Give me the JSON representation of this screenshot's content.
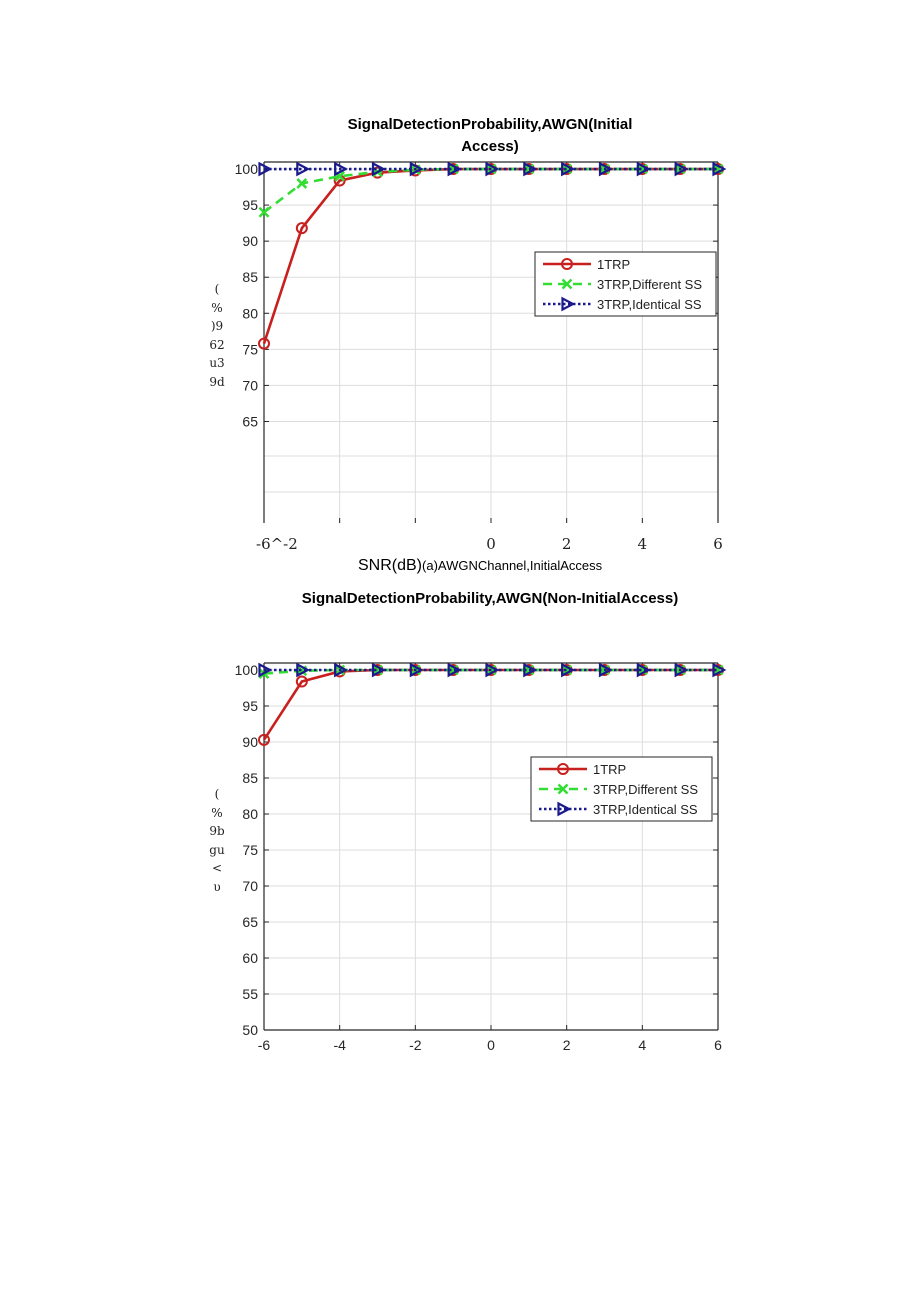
{
  "chart_data": [
    {
      "type": "line",
      "title_line1": "SignalDetectionProbability,AWGN(Initial",
      "title_line2": "Access)",
      "xlabel_main": "SNR(dB)",
      "xlabel_caption": "(a)AWGNChannel,InitialAccess",
      "ylabel_chars": [
        "(",
        "%",
        ")9",
        "62",
        "u3",
        "9d"
      ],
      "x_tick_labels": [
        {
          "x": -6,
          "label": "-6^-2"
        },
        {
          "x": 0,
          "label": "0"
        },
        {
          "x": 2,
          "label": "2"
        },
        {
          "x": 4,
          "label": "4"
        },
        {
          "x": 6,
          "label": "6"
        }
      ],
      "y_ticks": [
        100,
        95,
        90,
        85,
        80,
        75,
        70,
        65
      ],
      "xlim": [
        -6,
        6
      ],
      "ylim": [
        50,
        101
      ],
      "grid": true,
      "legend_position": "right",
      "x": [
        -6,
        -5,
        -4,
        -3,
        -2,
        -1,
        0,
        1,
        2,
        3,
        4,
        5,
        6
      ],
      "series": [
        {
          "name": "1TRP",
          "color": "#c8201e",
          "style": "solid",
          "marker": "circle",
          "values": [
            75.8,
            91.8,
            98.4,
            99.5,
            99.8,
            100,
            100,
            100,
            100,
            100,
            100,
            100,
            100
          ]
        },
        {
          "name": "3TRP,Different SS",
          "color": "#33dd33",
          "style": "dashed",
          "marker": "x",
          "values": [
            94.0,
            98.0,
            99.0,
            99.6,
            99.9,
            100,
            100,
            100,
            100,
            100,
            100,
            100,
            100
          ]
        },
        {
          "name": "3TRP,Identical SS",
          "color": "#1a1a8c",
          "style": "dotted",
          "marker": "triangle-right",
          "values": [
            100,
            100,
            100,
            100,
            100,
            100,
            100,
            100,
            100,
            100,
            100,
            100,
            100
          ]
        }
      ]
    },
    {
      "type": "line",
      "title": "SignalDetectionProbability,AWGN(Non-InitialAccess)",
      "ylabel_chars": [
        "(",
        "%",
        "9b",
        "gu",
        "<",
        "υ"
      ],
      "x_tick_labels": [
        {
          "x": -6,
          "label": "-6"
        },
        {
          "x": -4,
          "label": "-4"
        },
        {
          "x": -2,
          "label": "-2"
        },
        {
          "x": 0,
          "label": "0"
        },
        {
          "x": 2,
          "label": "2"
        },
        {
          "x": 4,
          "label": "4"
        },
        {
          "x": 6,
          "label": "6"
        }
      ],
      "y_ticks": [
        100,
        95,
        90,
        85,
        80,
        75,
        70,
        65,
        60,
        55,
        50
      ],
      "xlim": [
        -6,
        6
      ],
      "ylim": [
        50,
        101
      ],
      "grid": true,
      "legend_position": "right",
      "x": [
        -6,
        -5,
        -4,
        -3,
        -2,
        -1,
        0,
        1,
        2,
        3,
        4,
        5,
        6
      ],
      "series": [
        {
          "name": "1TRP",
          "color": "#c8201e",
          "style": "solid",
          "marker": "circle",
          "values": [
            90.3,
            98.4,
            99.8,
            100,
            100,
            100,
            100,
            100,
            100,
            100,
            100,
            100,
            100
          ]
        },
        {
          "name": "3TRP,Different SS",
          "color": "#33dd33",
          "style": "dashed",
          "marker": "x",
          "values": [
            99.5,
            99.9,
            100,
            100,
            100,
            100,
            100,
            100,
            100,
            100,
            100,
            100,
            100
          ]
        },
        {
          "name": "3TRP,Identical SS",
          "color": "#1a1a8c",
          "style": "dotted",
          "marker": "triangle-right",
          "values": [
            100,
            100,
            100,
            100,
            100,
            100,
            100,
            100,
            100,
            100,
            100,
            100,
            100
          ]
        }
      ]
    }
  ]
}
